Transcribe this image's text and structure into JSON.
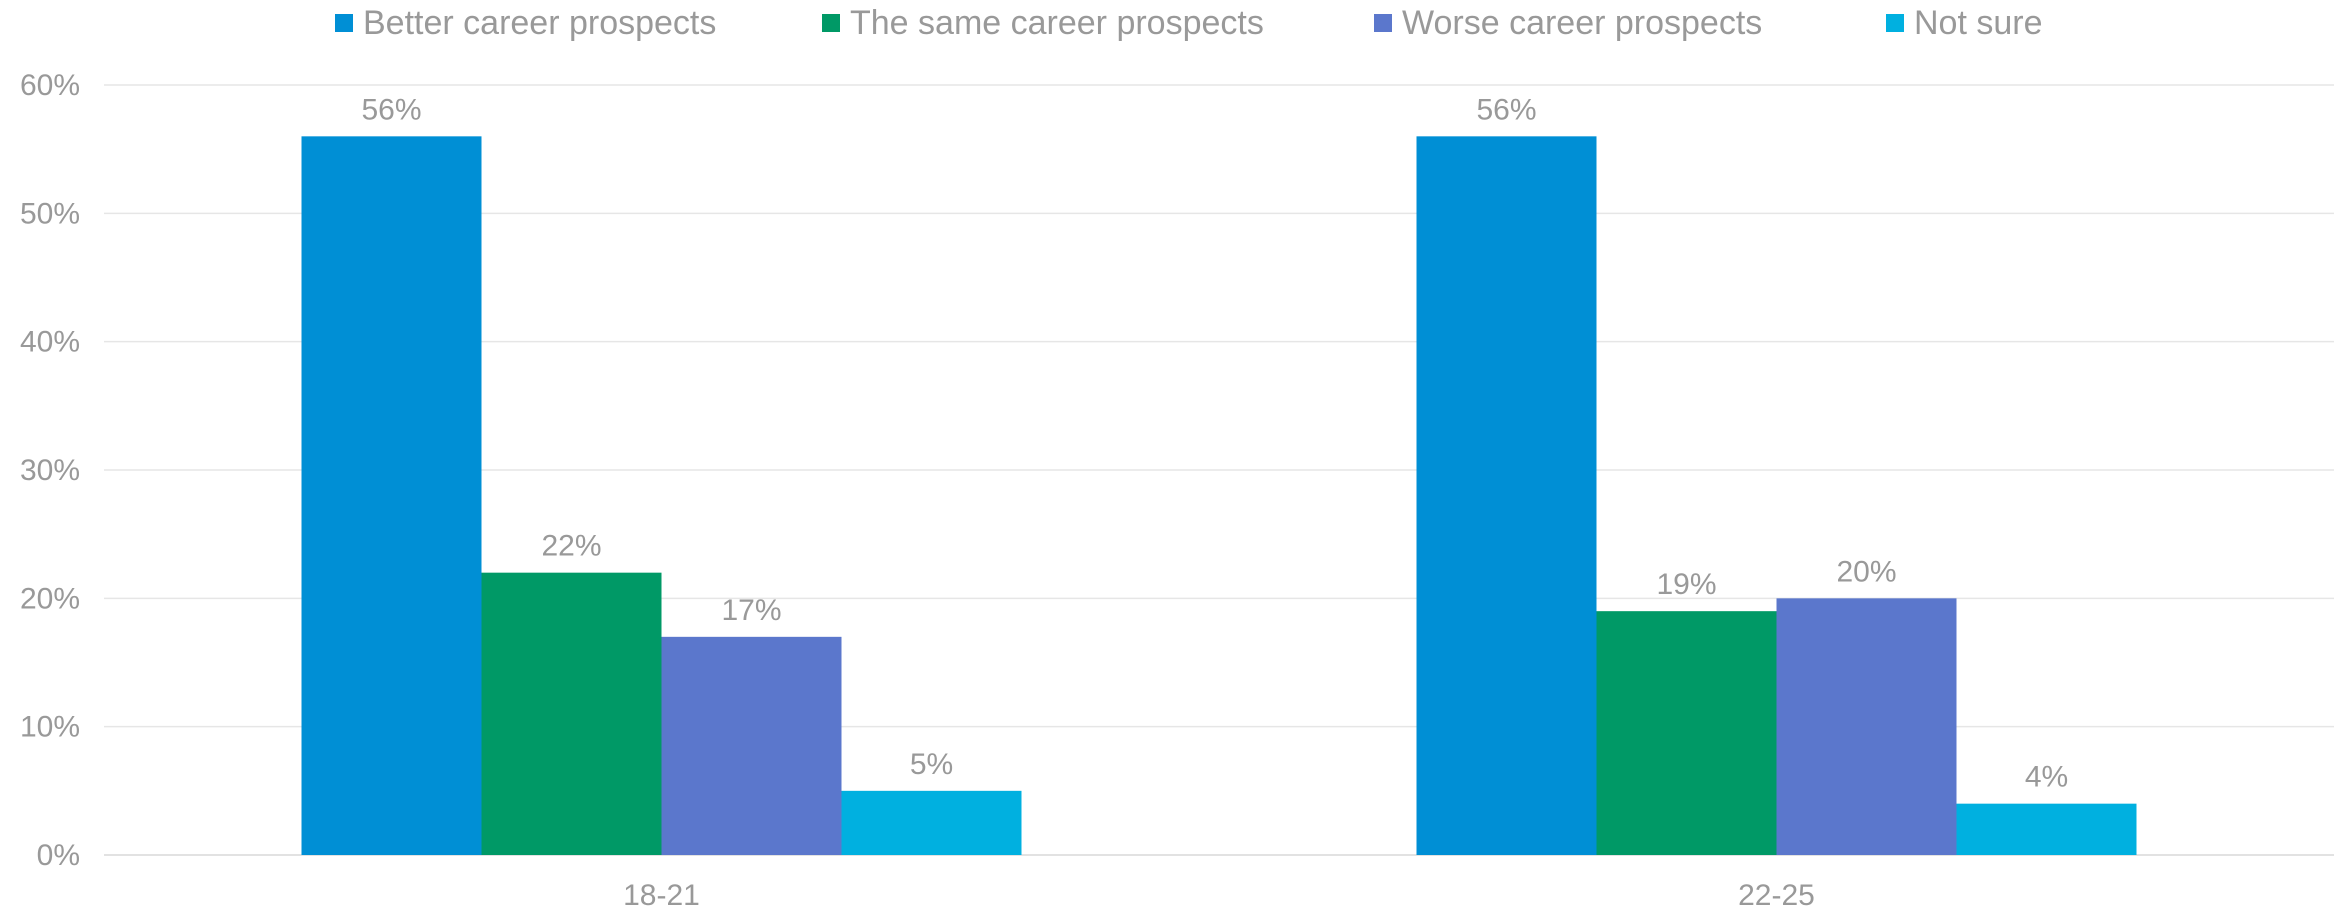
{
  "chart_data": {
    "type": "bar",
    "title": "",
    "xlabel": "",
    "ylabel": "",
    "categories": [
      "18-21",
      "22-25"
    ],
    "series": [
      {
        "name": "Better career prospects",
        "values": [
          56,
          56
        ],
        "labels": [
          "56%",
          "56%"
        ],
        "color": "#008fd5"
      },
      {
        "name": "The same career prospects",
        "values": [
          22,
          19
        ],
        "labels": [
          "22%",
          "19%"
        ],
        "color": "#009966"
      },
      {
        "name": "Worse career prospects",
        "values": [
          17,
          20
        ],
        "labels": [
          "17%",
          "20%"
        ],
        "color": "#5b77cc"
      },
      {
        "name": "Not sure",
        "values": [
          5,
          4
        ],
        "labels": [
          "5%",
          "4%"
        ],
        "color": "#00b0e0"
      }
    ],
    "ylim": [
      0,
      60
    ],
    "yticks": [
      0,
      10,
      20,
      30,
      40,
      50,
      60
    ],
    "ytick_labels": [
      "0%",
      "10%",
      "20%",
      "30%",
      "40%",
      "50%",
      "60%"
    ],
    "grid": true,
    "legend_position": "top-center",
    "text_color": "#999999",
    "grid_color": "#e6e6e6"
  }
}
